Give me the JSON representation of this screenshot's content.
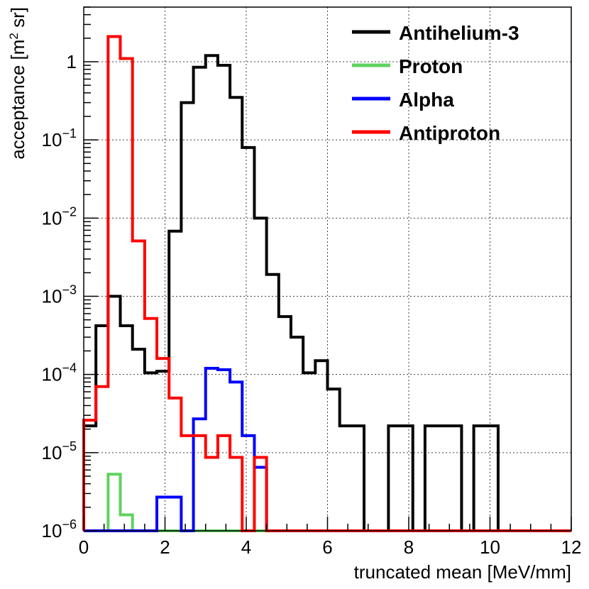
{
  "chart_data": {
    "type": "histogram",
    "xlabel": "truncated mean [MeV/mm]",
    "ylabel_main": "acceptance [m",
    "ylabel_sup": "2",
    "ylabel_end": " sr]",
    "xlim": [
      0,
      12
    ],
    "ylim": [
      1e-06,
      5
    ],
    "yscale": "log",
    "bin_width": 0.3,
    "grid": true,
    "legend_position": "top-right",
    "x_ticks": [
      "0",
      "2",
      "4",
      "6",
      "8",
      "10",
      "12"
    ],
    "y_ticks": [
      {
        "base": "10",
        "exp": "−6"
      },
      {
        "base": "10",
        "exp": "−5"
      },
      {
        "base": "10",
        "exp": "−4"
      },
      {
        "base": "10",
        "exp": "−3"
      },
      {
        "base": "10",
        "exp": "−2"
      },
      {
        "base": "10",
        "exp": "−1"
      },
      {
        "base": "1",
        "exp": ""
      }
    ],
    "series": [
      {
        "name": "Antihelium-3",
        "color": "#000000",
        "values": [
          2.2e-05,
          0.00042,
          0.001,
          0.00042,
          0.00021,
          0.000105,
          0.00011,
          0.0068,
          0.3,
          0.85,
          1.2,
          0.9,
          0.35,
          0.08,
          0.01,
          0.0019,
          0.00055,
          0.0003,
          0.000105,
          0.00015,
          6.5e-05,
          2.2e-05,
          2.2e-05,
          1e-06,
          1e-06,
          2.2e-05,
          2.2e-05,
          1e-06,
          2.2e-05,
          2.2e-05,
          2.2e-05,
          1e-06,
          2.2e-05,
          2.2e-05,
          1e-06,
          1e-06,
          1e-06,
          1e-06,
          1e-06,
          1e-06
        ]
      },
      {
        "name": "Proton",
        "color": "#5fd35f",
        "values": [
          1e-06,
          1e-06,
          5.3e-06,
          1.6e-06,
          1e-06,
          1e-06,
          1e-06,
          1e-06,
          1e-06,
          1e-06,
          1e-06,
          1e-06,
          1e-06,
          1e-06,
          1e-06,
          1e-06,
          1e-06,
          1e-06,
          1e-06,
          1e-06,
          1e-06,
          1e-06,
          1e-06,
          1e-06,
          1e-06,
          1e-06,
          1e-06,
          1e-06,
          1e-06,
          1e-06,
          1e-06,
          1e-06,
          1e-06,
          1e-06,
          1e-06,
          1e-06,
          1e-06,
          1e-06,
          1e-06,
          1e-06
        ]
      },
      {
        "name": "Alpha",
        "color": "#0000ff",
        "values": [
          1e-06,
          1e-06,
          1e-06,
          1e-06,
          1e-06,
          1e-06,
          2.7e-06,
          2.7e-06,
          1e-06,
          2.7e-05,
          0.00012,
          0.000115,
          8e-05,
          1.65e-05,
          6.5e-06,
          1e-06,
          1e-06,
          1e-06,
          1e-06,
          1e-06,
          1e-06,
          1e-06,
          1e-06,
          1e-06,
          1e-06,
          1e-06,
          1e-06,
          1e-06,
          1e-06,
          1e-06,
          1e-06,
          1e-06,
          1e-06,
          1e-06,
          1e-06,
          1e-06,
          1e-06,
          1e-06,
          1e-06,
          1e-06
        ]
      },
      {
        "name": "Antiproton",
        "color": "#ff0000",
        "values": [
          2.6e-05,
          7e-05,
          2.1,
          1.1,
          0.0051,
          0.00052,
          0.00016,
          5e-05,
          1.65e-05,
          1.65e-05,
          8.7e-06,
          1.65e-05,
          8.7e-06,
          1e-06,
          8.7e-06,
          1e-06,
          1e-06,
          1e-06,
          1e-06,
          1e-06,
          1e-06,
          1e-06,
          1e-06,
          1e-06,
          1e-06,
          1e-06,
          1e-06,
          1e-06,
          1e-06,
          1e-06,
          1e-06,
          1e-06,
          1e-06,
          1e-06,
          1e-06,
          1e-06,
          1e-06,
          1e-06,
          1e-06,
          1e-06
        ]
      }
    ]
  }
}
